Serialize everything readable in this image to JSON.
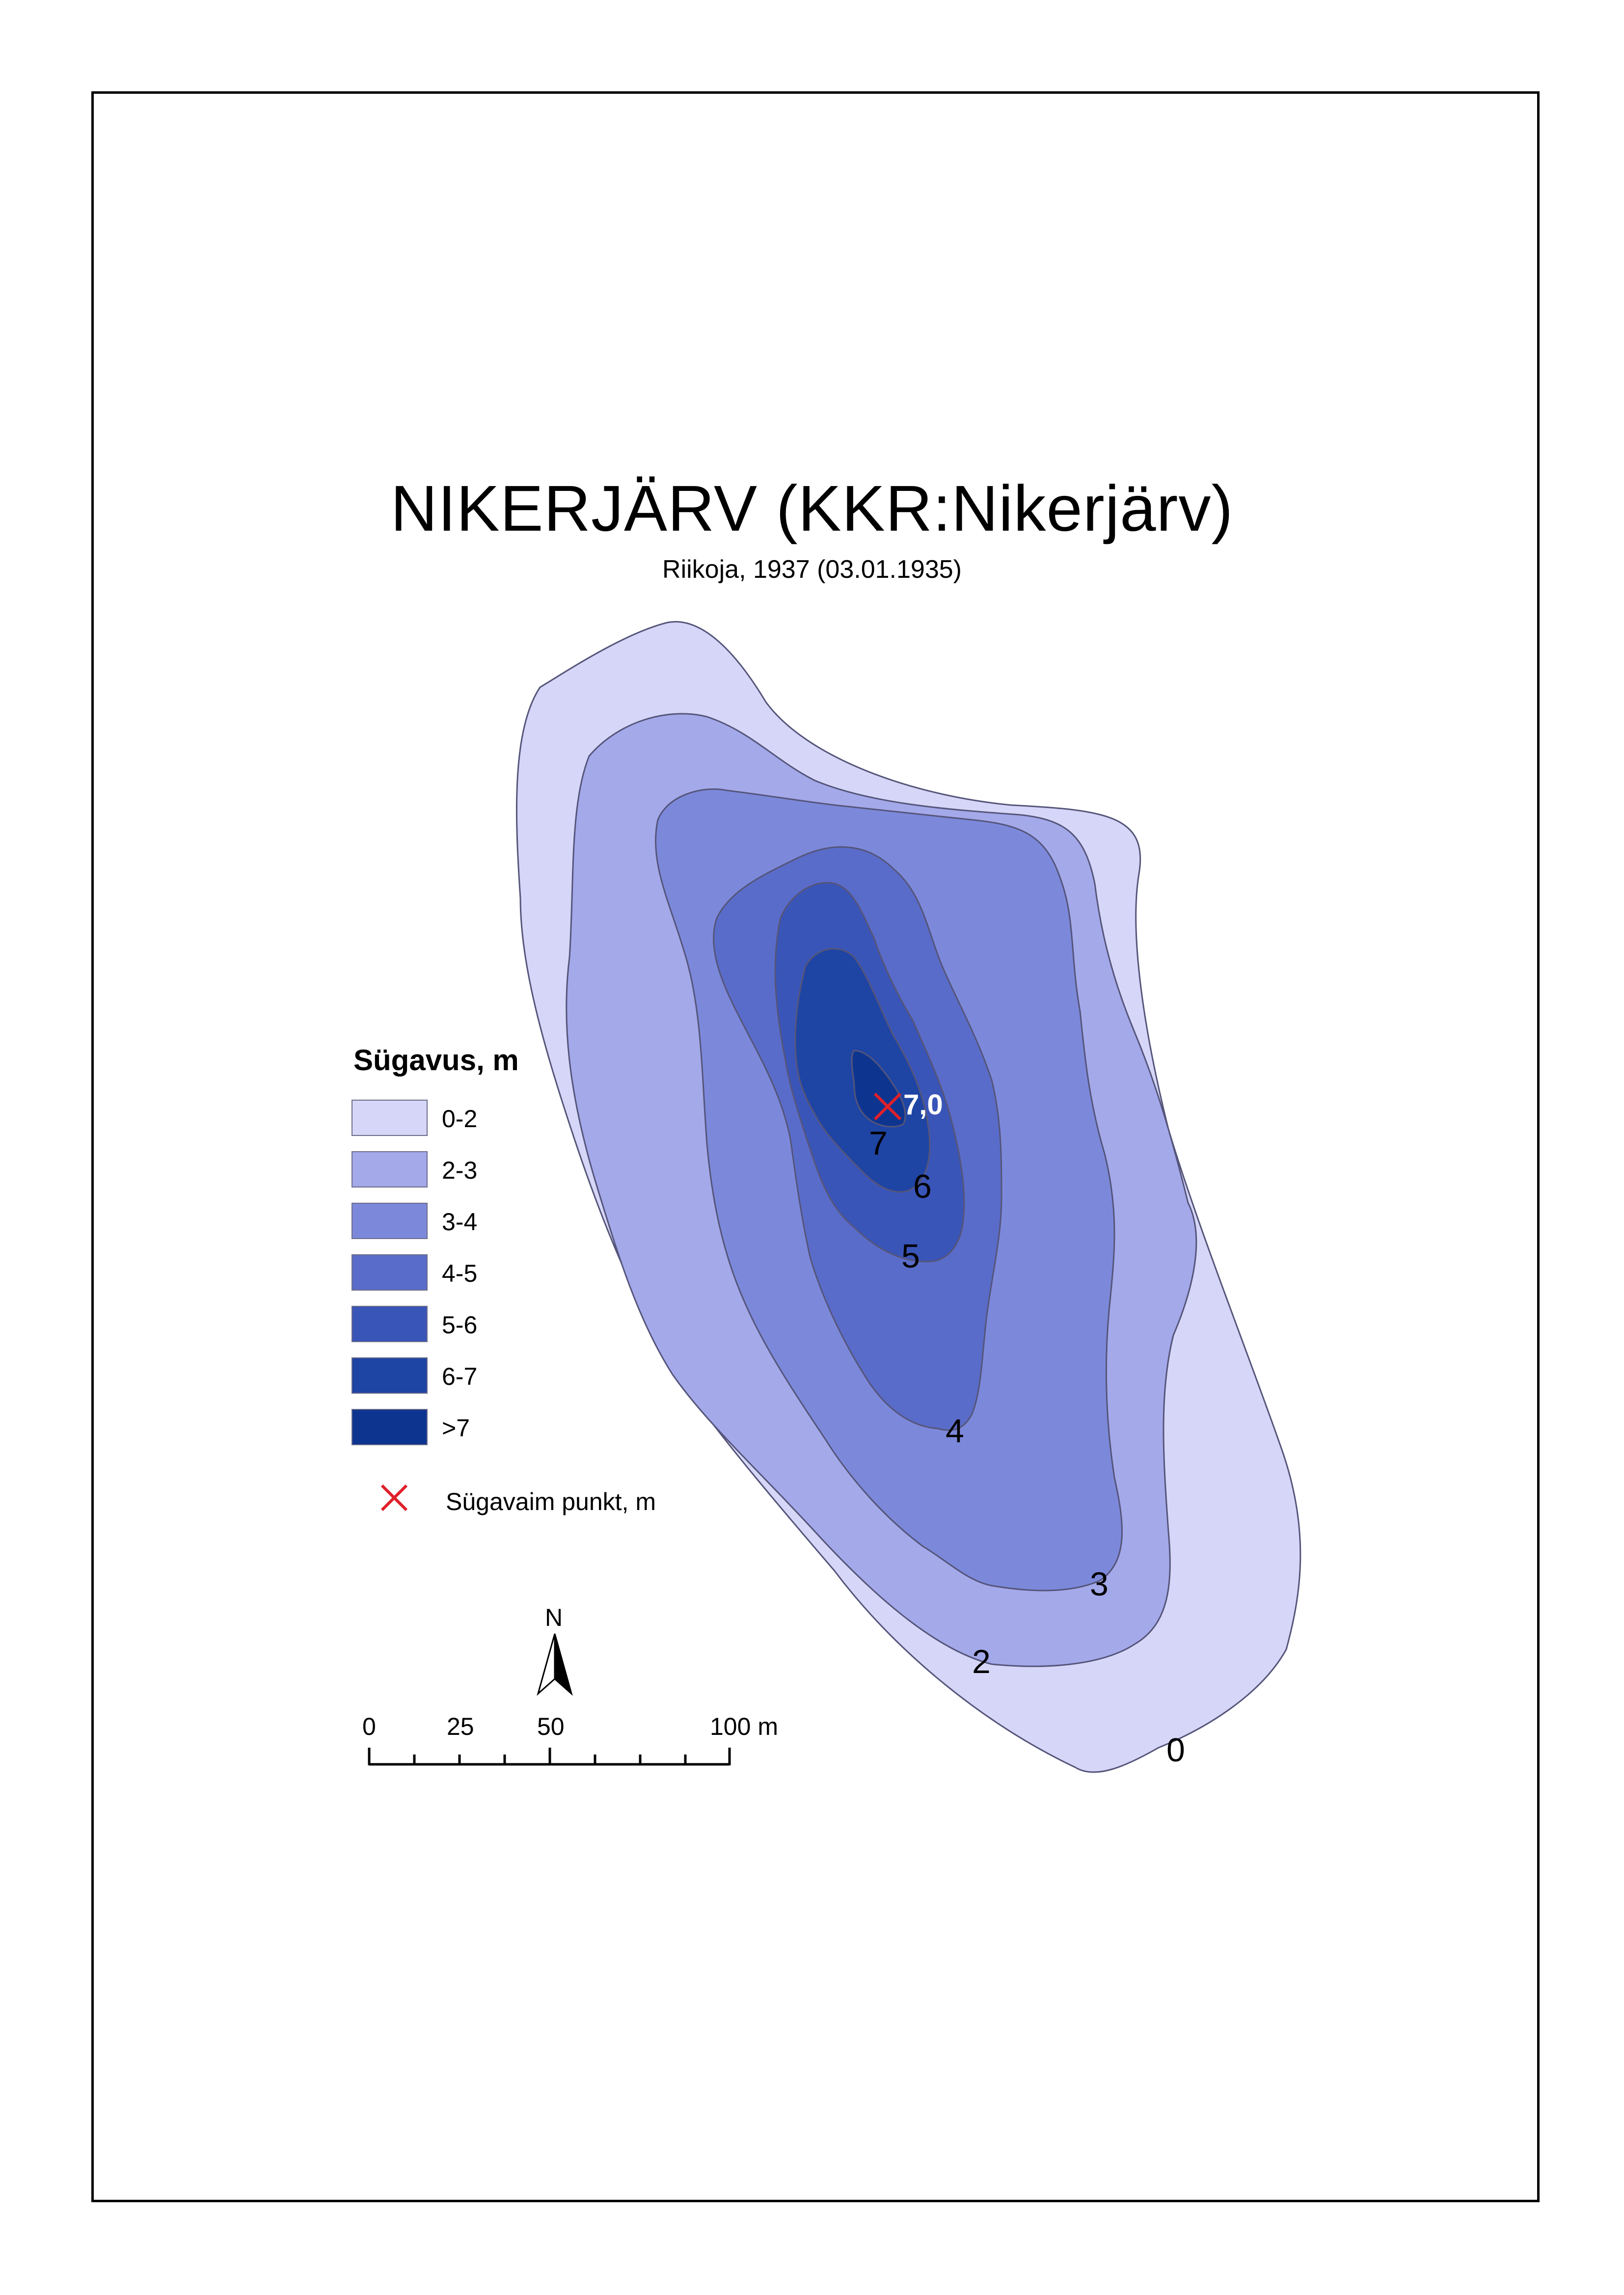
{
  "map": {
    "title": "NIKERJÄRV (KKR:Nikerjärv)",
    "subtitle": "Riikoja, 1937 (03.01.1935)",
    "contour_labels": [
      "7",
      "6",
      "5",
      "4",
      "3",
      "2",
      "0"
    ],
    "deepest_point_value": "7,0"
  },
  "legend": {
    "title": "Sügavus, m",
    "classes": [
      {
        "label": "0-2",
        "color": "#d6d6f8"
      },
      {
        "label": "2-3",
        "color": "#a4a9ea"
      },
      {
        "label": "3-4",
        "color": "#7c89db"
      },
      {
        "label": "4-5",
        "color": "#5a6cc9"
      },
      {
        "label": "5-6",
        "color": "#3a55b8"
      },
      {
        "label": "6-7",
        "color": "#1e44a4"
      },
      {
        "label": ">7",
        "color": "#0d3590"
      }
    ],
    "deepest_point_label": "Sügavaim punkt, m",
    "deepest_point_color": "#e0202a"
  },
  "north_arrow": {
    "label": "N"
  },
  "scale_bar": {
    "labels": [
      "0",
      "25",
      "50",
      "100 m"
    ]
  }
}
